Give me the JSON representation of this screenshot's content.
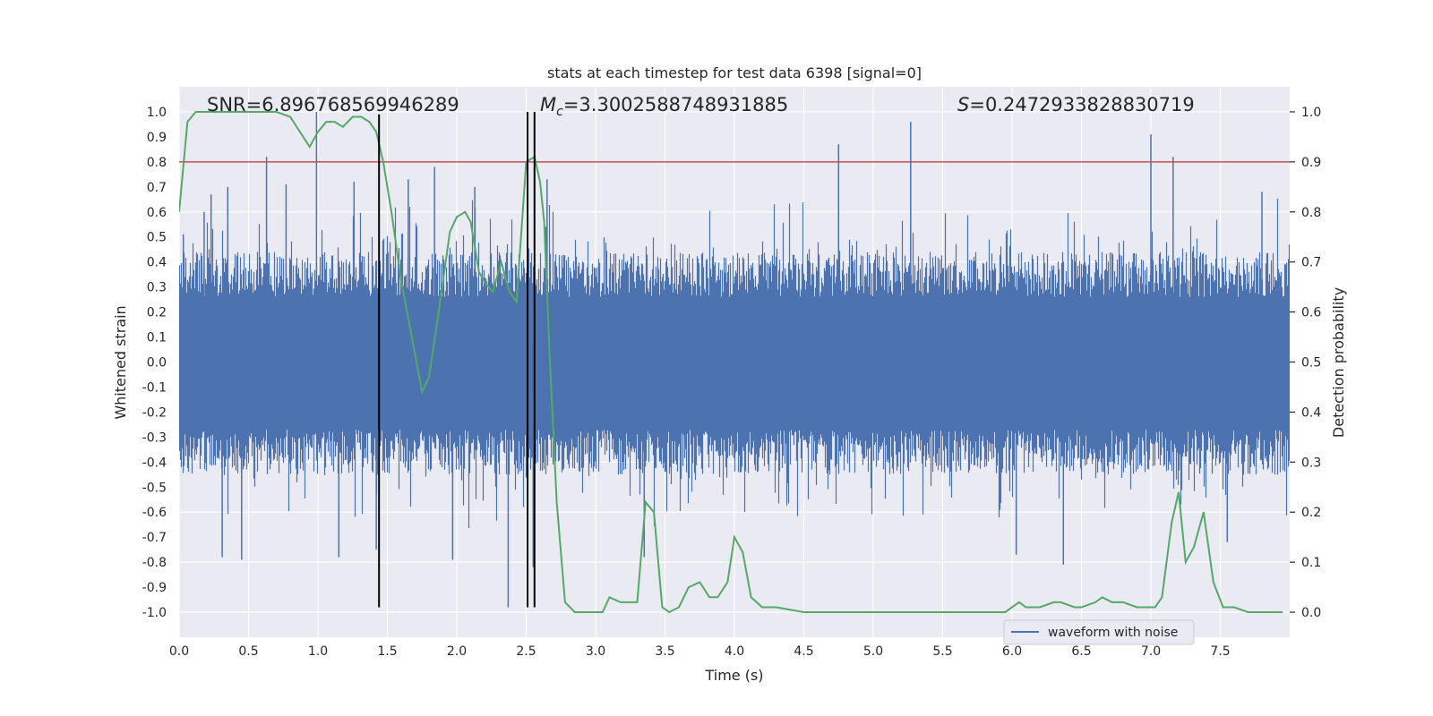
{
  "chart_data": {
    "type": "line",
    "title": "stats at each timestep for test data 6398 [signal=0]",
    "xlabel": "Time (s)",
    "ylabel": "Whitened strain",
    "y2label": "Detection probability",
    "xlim": [
      0.0,
      8.0
    ],
    "ylim": [
      -1.1,
      1.1
    ],
    "y2lim": [
      -0.05,
      1.05
    ],
    "xticks": [
      "0.0",
      "0.5",
      "1.0",
      "1.5",
      "2.0",
      "2.5",
      "3.0",
      "3.5",
      "4.0",
      "4.5",
      "5.0",
      "5.5",
      "6.0",
      "6.5",
      "7.0",
      "7.5"
    ],
    "yticks": [
      "1.0",
      "0.9",
      "0.8",
      "0.7",
      "0.6",
      "0.5",
      "0.4",
      "0.3",
      "0.2",
      "0.1",
      "0.0",
      "-0.1",
      "-0.2",
      "-0.3",
      "-0.4",
      "-0.5",
      "-0.6",
      "-0.7",
      "-0.8",
      "-0.9",
      "-1.0"
    ],
    "y2ticks": [
      "1.0",
      "0.9",
      "0.8",
      "0.7",
      "0.6",
      "0.5",
      "0.4",
      "0.3",
      "0.2",
      "0.1",
      "0.0"
    ],
    "grid": true,
    "legend": {
      "entries": [
        "waveform with noise"
      ],
      "placement": "lower-right"
    },
    "annotations": {
      "snr": "SNR=6.896768569946289",
      "mc_prefix": "M",
      "mc_sub": "c",
      "mc_value": "=3.3002588748931885",
      "s_prefix": "S",
      "s_value": "=0.2472933828830719"
    },
    "threshold": {
      "y": 0.8,
      "color": "#c44e52"
    },
    "vertical_lines": [
      {
        "x": 1.44,
        "y_range": [
          -0.98,
          0.99
        ]
      },
      {
        "x": 2.51,
        "y_range": [
          -0.98,
          1.0
        ]
      },
      {
        "x": 2.56,
        "y_range": [
          -0.98,
          1.0
        ]
      }
    ],
    "waveform": {
      "name": "waveform with noise",
      "color": "#4c72b0",
      "duration": 8.0,
      "envelope_upper": 0.26,
      "envelope_lower": -0.27,
      "peaks": [
        [
          0.03,
          0.51
        ],
        [
          0.18,
          0.6
        ],
        [
          0.23,
          0.67
        ],
        [
          0.35,
          0.7
        ],
        [
          0.63,
          0.82
        ],
        [
          0.77,
          0.71
        ],
        [
          0.99,
          1.0
        ],
        [
          1.26,
          0.72
        ],
        [
          1.65,
          0.73
        ],
        [
          1.84,
          0.78
        ],
        [
          2.13,
          0.7
        ],
        [
          2.65,
          0.73
        ],
        [
          4.75,
          0.87
        ],
        [
          5.27,
          0.96
        ],
        [
          7.0,
          0.91
        ],
        [
          7.16,
          0.82
        ],
        [
          7.8,
          0.68
        ],
        [
          0.31,
          -0.78
        ],
        [
          0.45,
          -0.79
        ],
        [
          1.15,
          -0.78
        ],
        [
          1.42,
          -0.75
        ],
        [
          1.97,
          -0.79
        ],
        [
          2.37,
          -0.98
        ],
        [
          2.55,
          -0.82
        ],
        [
          3.35,
          -0.78
        ],
        [
          6.03,
          -0.77
        ],
        [
          6.37,
          -0.81
        ],
        [
          7.55,
          -0.72
        ]
      ]
    },
    "detection_probability": {
      "name": "Detection probability",
      "color": "#55a868",
      "x": [
        0.0,
        0.06,
        0.12,
        0.2,
        0.3,
        0.4,
        0.5,
        0.6,
        0.7,
        0.8,
        0.87,
        0.94,
        1.0,
        1.06,
        1.12,
        1.18,
        1.25,
        1.31,
        1.37,
        1.42,
        1.47,
        1.53,
        1.6,
        1.67,
        1.75,
        1.8,
        1.88,
        1.95,
        2.0,
        2.06,
        2.1,
        2.16,
        2.2,
        2.26,
        2.32,
        2.38,
        2.43,
        2.5,
        2.56,
        2.6,
        2.63,
        2.67,
        2.72,
        2.78,
        2.85,
        2.92,
        2.98,
        3.05,
        3.1,
        3.18,
        3.25,
        3.3,
        3.36,
        3.42,
        3.48,
        3.53,
        3.6,
        3.67,
        3.75,
        3.82,
        3.88,
        3.95,
        4.0,
        4.06,
        4.12,
        4.2,
        4.3,
        4.5,
        4.8,
        5.0,
        5.1,
        5.3,
        5.6,
        5.8,
        5.95,
        6.05,
        6.1,
        6.2,
        6.3,
        6.35,
        6.45,
        6.5,
        6.6,
        6.65,
        6.72,
        6.8,
        6.9,
        6.98,
        7.03,
        7.08,
        7.15,
        7.2,
        7.25,
        7.31,
        7.38,
        7.45,
        7.52,
        7.6,
        7.7,
        7.78,
        7.85,
        7.95
      ],
      "y": [
        0.8,
        0.98,
        1.0,
        1.0,
        1.0,
        1.0,
        1.0,
        1.0,
        1.0,
        0.99,
        0.96,
        0.93,
        0.96,
        0.98,
        0.98,
        0.97,
        0.99,
        0.99,
        0.98,
        0.96,
        0.9,
        0.8,
        0.66,
        0.56,
        0.44,
        0.47,
        0.62,
        0.76,
        0.79,
        0.8,
        0.78,
        0.68,
        0.66,
        0.64,
        0.7,
        0.64,
        0.62,
        0.9,
        0.91,
        0.86,
        0.78,
        0.51,
        0.22,
        0.02,
        0.0,
        0.0,
        0.0,
        0.0,
        0.03,
        0.02,
        0.02,
        0.02,
        0.22,
        0.2,
        0.01,
        0.0,
        0.01,
        0.05,
        0.06,
        0.03,
        0.03,
        0.06,
        0.15,
        0.12,
        0.03,
        0.01,
        0.01,
        0.0,
        0.0,
        0.0,
        0.0,
        0.0,
        0.0,
        0.0,
        0.0,
        0.02,
        0.01,
        0.01,
        0.02,
        0.02,
        0.01,
        0.01,
        0.02,
        0.03,
        0.02,
        0.02,
        0.01,
        0.01,
        0.01,
        0.03,
        0.18,
        0.24,
        0.1,
        0.13,
        0.2,
        0.06,
        0.01,
        0.01,
        0.0,
        0.0,
        0.0,
        0.0
      ]
    }
  }
}
